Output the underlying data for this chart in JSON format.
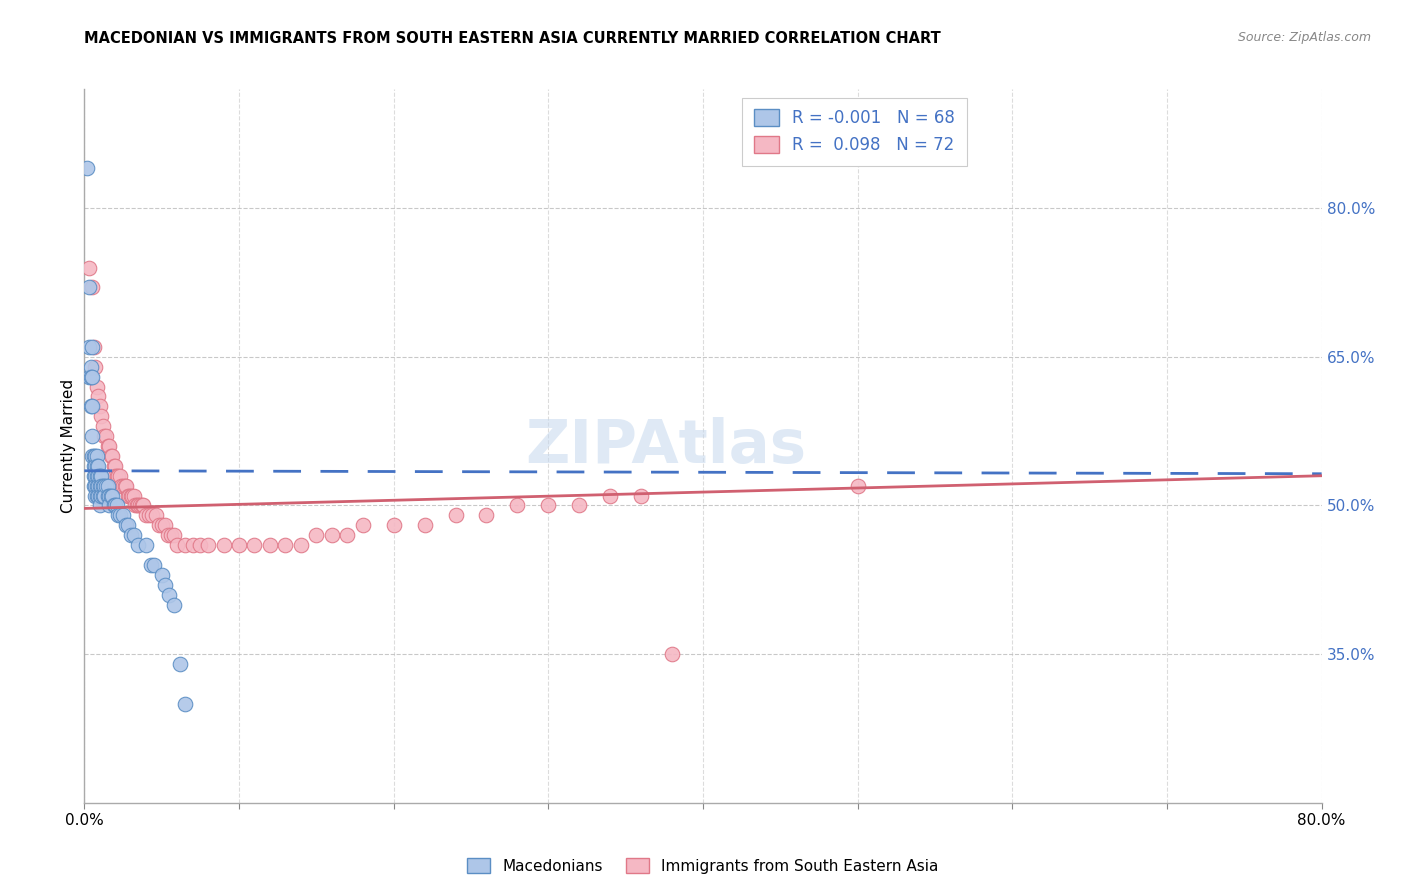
{
  "title": "MACEDONIAN VS IMMIGRANTS FROM SOUTH EASTERN ASIA CURRENTLY MARRIED CORRELATION CHART",
  "source": "Source: ZipAtlas.com",
  "ylabel": "Currently Married",
  "right_yticks": [
    "80.0%",
    "65.0%",
    "50.0%",
    "35.0%"
  ],
  "right_ytick_vals": [
    0.8,
    0.65,
    0.5,
    0.35
  ],
  "legend_label1": "Macedonians",
  "legend_label2": "Immigrants from South Eastern Asia",
  "r1": "-0.001",
  "n1": "68",
  "r2": "0.098",
  "n2": "72",
  "color_blue_fill": "#aec6e8",
  "color_pink_fill": "#f5b8c4",
  "color_blue_edge": "#5b8ec4",
  "color_pink_edge": "#e07888",
  "color_blue_line": "#4472c4",
  "color_pink_line": "#d06070",
  "color_blue_text": "#4472c4",
  "watermark": "ZIPAtlas",
  "xlim": [
    0.0,
    0.8
  ],
  "ylim": [
    0.2,
    0.92
  ],
  "blue_trend_y0": 0.535,
  "blue_trend_y1": 0.532,
  "pink_trend_y0": 0.497,
  "pink_trend_y1": 0.53,
  "blue_x": [
    0.002,
    0.003,
    0.003,
    0.003,
    0.004,
    0.004,
    0.004,
    0.005,
    0.005,
    0.005,
    0.005,
    0.005,
    0.006,
    0.006,
    0.006,
    0.006,
    0.007,
    0.007,
    0.007,
    0.007,
    0.007,
    0.008,
    0.008,
    0.008,
    0.008,
    0.008,
    0.009,
    0.009,
    0.009,
    0.009,
    0.01,
    0.01,
    0.01,
    0.01,
    0.011,
    0.011,
    0.011,
    0.012,
    0.012,
    0.013,
    0.013,
    0.014,
    0.015,
    0.015,
    0.016,
    0.016,
    0.017,
    0.018,
    0.019,
    0.02,
    0.021,
    0.022,
    0.023,
    0.025,
    0.027,
    0.028,
    0.03,
    0.032,
    0.035,
    0.04,
    0.043,
    0.045,
    0.05,
    0.052,
    0.055,
    0.058,
    0.062,
    0.065
  ],
  "blue_y": [
    0.84,
    0.72,
    0.66,
    0.63,
    0.64,
    0.63,
    0.6,
    0.66,
    0.63,
    0.6,
    0.57,
    0.55,
    0.55,
    0.54,
    0.53,
    0.52,
    0.55,
    0.54,
    0.53,
    0.52,
    0.51,
    0.55,
    0.54,
    0.53,
    0.52,
    0.51,
    0.54,
    0.53,
    0.52,
    0.51,
    0.53,
    0.52,
    0.51,
    0.5,
    0.53,
    0.52,
    0.51,
    0.52,
    0.51,
    0.52,
    0.51,
    0.52,
    0.52,
    0.51,
    0.51,
    0.5,
    0.51,
    0.51,
    0.5,
    0.5,
    0.5,
    0.49,
    0.49,
    0.49,
    0.48,
    0.48,
    0.47,
    0.47,
    0.46,
    0.46,
    0.44,
    0.44,
    0.43,
    0.42,
    0.41,
    0.4,
    0.34,
    0.3
  ],
  "pink_x": [
    0.003,
    0.005,
    0.006,
    0.007,
    0.008,
    0.009,
    0.01,
    0.011,
    0.012,
    0.013,
    0.014,
    0.015,
    0.016,
    0.017,
    0.018,
    0.019,
    0.02,
    0.02,
    0.021,
    0.022,
    0.023,
    0.024,
    0.025,
    0.026,
    0.027,
    0.028,
    0.029,
    0.03,
    0.031,
    0.032,
    0.033,
    0.034,
    0.035,
    0.036,
    0.037,
    0.038,
    0.04,
    0.042,
    0.044,
    0.046,
    0.048,
    0.05,
    0.052,
    0.054,
    0.056,
    0.058,
    0.06,
    0.065,
    0.07,
    0.075,
    0.08,
    0.09,
    0.1,
    0.11,
    0.12,
    0.13,
    0.14,
    0.15,
    0.16,
    0.17,
    0.18,
    0.2,
    0.22,
    0.24,
    0.26,
    0.28,
    0.3,
    0.32,
    0.34,
    0.36,
    0.38,
    0.5
  ],
  "pink_y": [
    0.74,
    0.72,
    0.66,
    0.64,
    0.62,
    0.61,
    0.6,
    0.59,
    0.58,
    0.57,
    0.57,
    0.56,
    0.56,
    0.55,
    0.55,
    0.54,
    0.54,
    0.53,
    0.53,
    0.53,
    0.53,
    0.52,
    0.52,
    0.52,
    0.52,
    0.51,
    0.51,
    0.51,
    0.51,
    0.51,
    0.5,
    0.5,
    0.5,
    0.5,
    0.5,
    0.5,
    0.49,
    0.49,
    0.49,
    0.49,
    0.48,
    0.48,
    0.48,
    0.47,
    0.47,
    0.47,
    0.46,
    0.46,
    0.46,
    0.46,
    0.46,
    0.46,
    0.46,
    0.46,
    0.46,
    0.46,
    0.46,
    0.47,
    0.47,
    0.47,
    0.48,
    0.48,
    0.48,
    0.49,
    0.49,
    0.5,
    0.5,
    0.5,
    0.51,
    0.51,
    0.35,
    0.52
  ]
}
